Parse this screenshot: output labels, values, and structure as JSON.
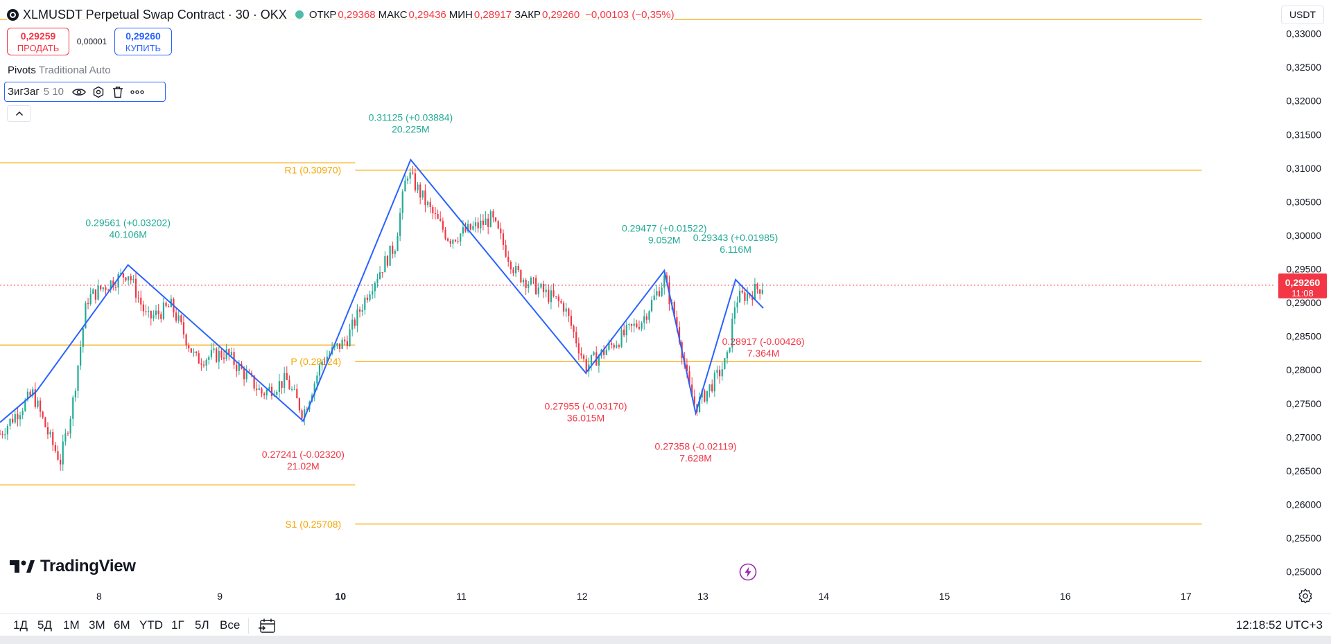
{
  "header": {
    "symbol_title": "XLMUSDT Perpetual Swap Contract · 30 · OKX",
    "ohlc": [
      {
        "key": "ОТКР",
        "value": "0,29368"
      },
      {
        "key": "МАКС",
        "value": "0,29436"
      },
      {
        "key": "МИН",
        "value": "0,28917"
      },
      {
        "key": "ЗАКР",
        "value": "0,29260"
      }
    ],
    "change": "−0,00103 (−0,35%)",
    "market_status_color": "#22ab94"
  },
  "trade": {
    "sell_price": "0,29259",
    "sell_label": "ПРОДАТЬ",
    "spread": "0,00001",
    "buy_price": "0,29260",
    "buy_label": "КУПИТЬ"
  },
  "indicators": {
    "pivots_name": "Pivots",
    "pivots_params": "Traditional Auto",
    "zigzag_name": "ЗигЗаг",
    "zigzag_params": "5 10",
    "icons": [
      "eye-icon",
      "settings-icon",
      "trash-icon",
      "more-icon"
    ]
  },
  "price_scale": {
    "currency": "USDT",
    "last_price": "0,29260",
    "countdown": "11:08",
    "last_color": "#f23645"
  },
  "branding": "TradingView",
  "bottom": {
    "ranges": [
      "1Д",
      "5Д",
      "1М",
      "3М",
      "6М",
      "YTD",
      "1Г",
      "5Л",
      "Все"
    ],
    "clock": "12:18:52 UTC+3"
  },
  "chart_data": {
    "type": "candlestick",
    "y_axis_labels": [
      "0,33000",
      "0,32500",
      "0,32000",
      "0,31500",
      "0,31000",
      "0,30500",
      "0,30000",
      "0,29500",
      "0,29000",
      "0,28500",
      "0,28000",
      "0,27500",
      "0,27000",
      "0,26500",
      "0,26000",
      "0,25500",
      "0,25000"
    ],
    "ylim": [
      0.248,
      0.335
    ],
    "x_tick_labels": [
      {
        "label": "8",
        "day": 8,
        "bold": false
      },
      {
        "label": "9",
        "day": 9,
        "bold": false
      },
      {
        "label": "10",
        "day": 10,
        "bold": true
      },
      {
        "label": "11",
        "day": 11,
        "bold": false
      },
      {
        "label": "12",
        "day": 12,
        "bold": false
      },
      {
        "label": "13",
        "day": 13,
        "bold": false
      },
      {
        "label": "14",
        "day": 14,
        "bold": false
      },
      {
        "label": "15",
        "day": 15,
        "bold": false
      },
      {
        "label": "16",
        "day": 16,
        "bold": false
      },
      {
        "label": "17",
        "day": 17,
        "bold": false
      }
    ],
    "xlim": [
      7.18,
      18.2
    ],
    "pivot_levels": [
      {
        "label": "R1 (0.30970)",
        "value": 0.3097,
        "period": "current",
        "x_from": 10.12,
        "x_to": 17.13
      },
      {
        "label": "P (0.28124)",
        "value": 0.28124,
        "period": "current",
        "x_from": 10.12,
        "x_to": 17.13
      },
      {
        "label": "S1 (0.25708)",
        "value": 0.25708,
        "period": "current",
        "x_from": 10.12,
        "x_to": 17.13
      },
      {
        "label": "",
        "value": 0.3108,
        "period": "previous",
        "x_from": 7.18,
        "x_to": 10.12
      },
      {
        "label": "",
        "value": 0.2837,
        "period": "previous",
        "x_from": 7.18,
        "x_to": 10.12
      },
      {
        "label": "",
        "value": 0.2629,
        "period": "previous",
        "x_from": 7.18,
        "x_to": 10.12
      },
      {
        "label": "",
        "value": 0.3321,
        "period": "previous",
        "x_from": 7.18,
        "x_to": 10.12
      },
      {
        "label": "",
        "value": 0.3321,
        "period": "current",
        "x_from": 10.12,
        "x_to": 17.13
      }
    ],
    "zigzag": [
      {
        "x": 7.18,
        "y": 0.2722
      },
      {
        "x": 7.48,
        "y": 0.2768
      },
      {
        "x": 8.24,
        "y": 0.29561
      },
      {
        "x": 9.69,
        "y": 0.27241
      },
      {
        "x": 10.58,
        "y": 0.31125
      },
      {
        "x": 12.03,
        "y": 0.27955
      },
      {
        "x": 12.68,
        "y": 0.29477
      },
      {
        "x": 12.94,
        "y": 0.27358
      },
      {
        "x": 13.27,
        "y": 0.29343
      },
      {
        "x": 13.5,
        "y": 0.28917
      }
    ],
    "zigzag_labels": [
      {
        "x": 8.24,
        "price": "0.29561 (+0.03202)",
        "vol": "40.106M",
        "dir": "up"
      },
      {
        "x": 9.69,
        "price": "0.27241 (-0.02320)",
        "vol": "21.02M",
        "dir": "down"
      },
      {
        "x": 10.58,
        "price": "0.31125 (+0.03884)",
        "vol": "20.225M",
        "dir": "up"
      },
      {
        "x": 12.03,
        "price": "0.27955 (-0.03170)",
        "vol": "36.015M",
        "dir": "down"
      },
      {
        "x": 12.68,
        "price": "0.29477 (+0.01522)",
        "vol": "9.052M",
        "dir": "up"
      },
      {
        "x": 12.94,
        "price": "0.27358 (-0.02119)",
        "vol": "7.628M",
        "dir": "down"
      },
      {
        "x": 13.27,
        "price": "0.29343 (+0.01985)",
        "vol": "6.116M",
        "dir": "up"
      },
      {
        "x": 13.5,
        "price": "0.28917 (-0.00426)",
        "vol": "7.364M",
        "dir": "down"
      }
    ],
    "candle_path": [
      {
        "x": 7.18,
        "y": 0.2705
      },
      {
        "x": 7.45,
        "y": 0.2765
      },
      {
        "x": 7.6,
        "y": 0.2695
      },
      {
        "x": 7.68,
        "y": 0.2665
      },
      {
        "x": 7.78,
        "y": 0.2748
      },
      {
        "x": 7.9,
        "y": 0.2905
      },
      {
        "x": 8.05,
        "y": 0.2925
      },
      {
        "x": 8.24,
        "y": 0.2945
      },
      {
        "x": 8.4,
        "y": 0.2875
      },
      {
        "x": 8.6,
        "y": 0.2895
      },
      {
        "x": 8.8,
        "y": 0.2815
      },
      {
        "x": 9.05,
        "y": 0.2825
      },
      {
        "x": 9.2,
        "y": 0.2795
      },
      {
        "x": 9.35,
        "y": 0.2765
      },
      {
        "x": 9.55,
        "y": 0.2785
      },
      {
        "x": 9.69,
        "y": 0.2735
      },
      {
        "x": 9.85,
        "y": 0.2815
      },
      {
        "x": 10.05,
        "y": 0.2845
      },
      {
        "x": 10.25,
        "y": 0.2925
      },
      {
        "x": 10.45,
        "y": 0.2985
      },
      {
        "x": 10.55,
        "y": 0.3095
      },
      {
        "x": 10.75,
        "y": 0.3035
      },
      {
        "x": 10.9,
        "y": 0.2995
      },
      {
        "x": 11.15,
        "y": 0.3015
      },
      {
        "x": 11.25,
        "y": 0.3025
      },
      {
        "x": 11.45,
        "y": 0.2945
      },
      {
        "x": 11.6,
        "y": 0.2925
      },
      {
        "x": 11.85,
        "y": 0.2895
      },
      {
        "x": 12.03,
        "y": 0.2805
      },
      {
        "x": 12.3,
        "y": 0.2845
      },
      {
        "x": 12.5,
        "y": 0.2875
      },
      {
        "x": 12.68,
        "y": 0.2935
      },
      {
        "x": 12.8,
        "y": 0.2855
      },
      {
        "x": 12.88,
        "y": 0.2775
      },
      {
        "x": 12.94,
        "y": 0.2745
      },
      {
        "x": 13.1,
        "y": 0.2785
      },
      {
        "x": 13.2,
        "y": 0.2815
      },
      {
        "x": 13.27,
        "y": 0.2905
      },
      {
        "x": 13.4,
        "y": 0.2915
      },
      {
        "x": 13.5,
        "y": 0.2926
      }
    ],
    "last_price_value": 0.2926,
    "up_color": "#22ab94",
    "down_color": "#f23645",
    "zigzag_color": "#2962ff",
    "pivot_color": "#f7a600"
  }
}
